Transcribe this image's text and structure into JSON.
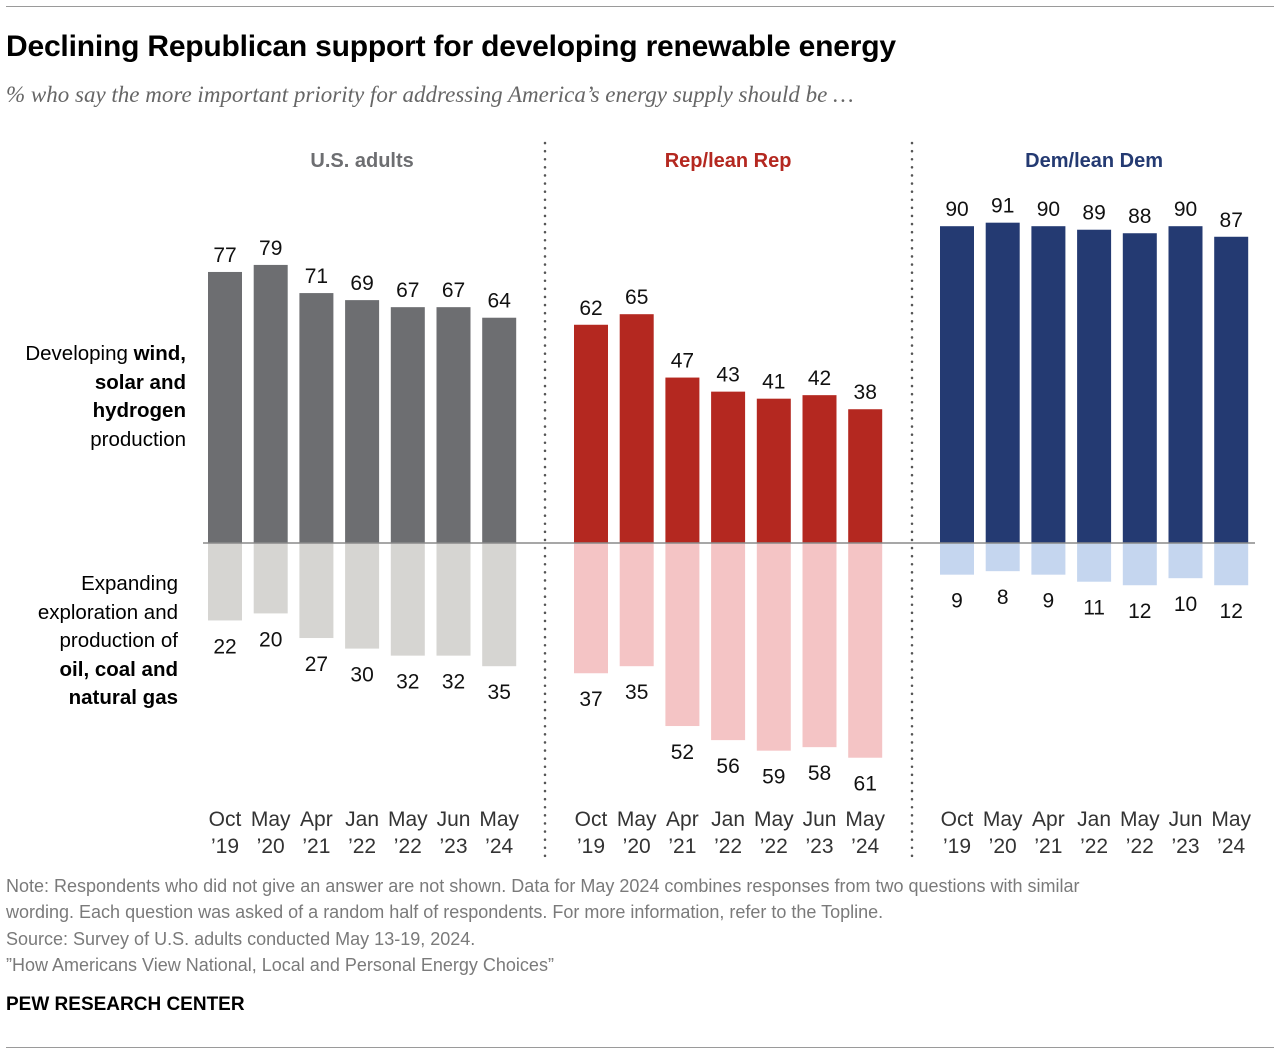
{
  "title": "Declining Republican support for developing renewable energy",
  "subtitle": "% who say the more important priority for addressing America’s energy supply should be …",
  "row_labels": {
    "top": {
      "l1_regular": "Developing ",
      "l1_bold": "wind,",
      "l2": "solar and",
      "l3": "hydrogen",
      "l4": "production"
    },
    "bottom": {
      "l1": "Expanding",
      "l2": "exploration and",
      "l3": "production of",
      "l4": "oil, coal and",
      "l5": "natural gas"
    }
  },
  "chart_data": {
    "type": "bar",
    "categories": [
      [
        "Oct",
        "’19"
      ],
      [
        "May",
        "’20"
      ],
      [
        "Apr",
        "’21"
      ],
      [
        "Jan",
        "’22"
      ],
      [
        "May",
        "’22"
      ],
      [
        "Jun",
        "’23"
      ],
      [
        "May",
        "’24"
      ]
    ],
    "ylim": [
      -65,
      95
    ],
    "panels": [
      {
        "name": "U.S. adults",
        "title_color": "#6d6e71",
        "colors": {
          "renewable": "#6d6e71",
          "fossil": "#d6d5d2"
        },
        "series": [
          {
            "name": "Developing wind, solar and hydrogen production",
            "values": [
              77,
              79,
              71,
              69,
              67,
              67,
              64
            ]
          },
          {
            "name": "Expanding exploration and production of oil, coal and natural gas",
            "values": [
              22,
              20,
              27,
              30,
              32,
              32,
              35
            ]
          }
        ]
      },
      {
        "name": "Rep/lean Rep",
        "title_color": "#b42820",
        "colors": {
          "renewable": "#b42820",
          "fossil": "#f4c4c5"
        },
        "series": [
          {
            "name": "Developing wind, solar and hydrogen production",
            "values": [
              62,
              65,
              47,
              43,
              41,
              42,
              38
            ]
          },
          {
            "name": "Expanding exploration and production of oil, coal and natural gas",
            "values": [
              37,
              35,
              52,
              56,
              59,
              58,
              61
            ]
          }
        ]
      },
      {
        "name": "Dem/lean Dem",
        "title_color": "#243a72",
        "colors": {
          "renewable": "#243a72",
          "fossil": "#c5d6ef"
        },
        "series": [
          {
            "name": "Developing wind, solar and hydrogen production",
            "values": [
              90,
              91,
              90,
              89,
              88,
              90,
              87
            ]
          },
          {
            "name": "Expanding exploration and production of oil, coal and natural gas",
            "values": [
              9,
              8,
              9,
              11,
              12,
              10,
              12
            ]
          }
        ]
      }
    ]
  },
  "notes": {
    "note_line1": "Note: Respondents who did not give an answer are not shown. Data for May 2024 combines responses from two questions with similar",
    "note_line2": "wording. Each question was asked of a random half of respondents. For more information, refer to the Topline.",
    "source": "Source: Survey of U.S. adults conducted May 13-19, 2024.",
    "report": "”How Americans View National, Local and Personal Energy Choices”"
  },
  "brand": "PEW RESEARCH CENTER"
}
